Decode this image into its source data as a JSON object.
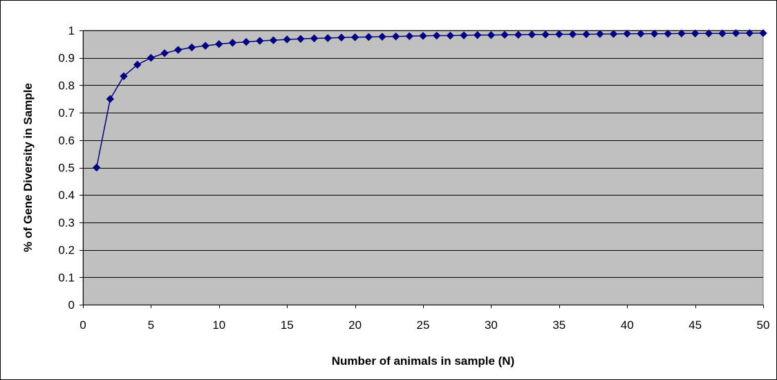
{
  "chart_data": {
    "type": "line",
    "title": "",
    "xlabel": "Number of animals in sample (N)",
    "ylabel": "% of Gene Diversity in Sample",
    "xlim": [
      0,
      50
    ],
    "ylim": [
      0,
      1
    ],
    "xticks": [
      0,
      5,
      10,
      15,
      20,
      25,
      30,
      35,
      40,
      45,
      50
    ],
    "yticks": [
      0,
      0.1,
      0.2,
      0.3,
      0.4,
      0.5,
      0.6,
      0.7,
      0.8,
      0.9,
      1
    ],
    "xtick_labels": [
      "0",
      "5",
      "10",
      "15",
      "20",
      "25",
      "30",
      "35",
      "40",
      "45",
      "50"
    ],
    "ytick_labels": [
      "0",
      "0.1",
      "0.2",
      "0.3",
      "0.4",
      "0.5",
      "0.6",
      "0.7",
      "0.8",
      "0.9",
      "1"
    ],
    "grid": "horizontal",
    "legend": "none",
    "plot_background": "#c0c0c0",
    "series_color": "#000080",
    "marker": "diamond",
    "x": [
      1,
      2,
      3,
      4,
      5,
      6,
      7,
      8,
      9,
      10,
      11,
      12,
      13,
      14,
      15,
      16,
      17,
      18,
      19,
      20,
      21,
      22,
      23,
      24,
      25,
      26,
      27,
      28,
      29,
      30,
      31,
      32,
      33,
      34,
      35,
      36,
      37,
      38,
      39,
      40,
      41,
      42,
      43,
      44,
      45,
      46,
      47,
      48,
      49,
      50
    ],
    "y": [
      0.5,
      0.75,
      0.833,
      0.875,
      0.9,
      0.917,
      0.929,
      0.938,
      0.944,
      0.95,
      0.955,
      0.958,
      0.962,
      0.964,
      0.967,
      0.969,
      0.971,
      0.972,
      0.974,
      0.975,
      0.976,
      0.977,
      0.978,
      0.979,
      0.98,
      0.981,
      0.981,
      0.982,
      0.983,
      0.983,
      0.984,
      0.984,
      0.985,
      0.985,
      0.986,
      0.986,
      0.986,
      0.987,
      0.987,
      0.988,
      0.988,
      0.988,
      0.988,
      0.989,
      0.989,
      0.989,
      0.989,
      0.99,
      0.99,
      0.99
    ]
  }
}
